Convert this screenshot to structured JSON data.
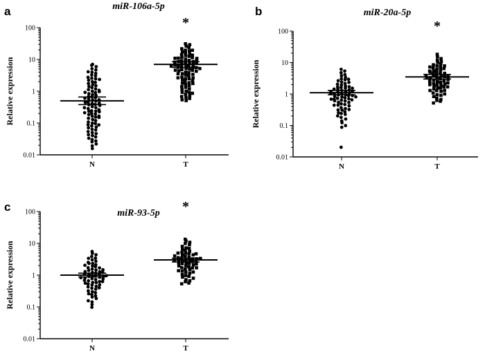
{
  "chart_data": [
    {
      "panel_letter": "a",
      "type": "scatter",
      "title": "miR-106a-5p",
      "ylabel": "Relative expression",
      "yscale": "log",
      "ylim": [
        0.01,
        100
      ],
      "y_ticks": [
        0.01,
        0.1,
        1,
        10,
        100
      ],
      "y_tick_labels": [
        "0.01",
        "0.1",
        "1",
        "10",
        "100"
      ],
      "categories": [
        "N",
        "T"
      ],
      "significance": "*",
      "significance_on": "T",
      "series": [
        {
          "name": "N",
          "marker": "circle",
          "mean": 0.5,
          "sem": [
            0.38,
            0.66
          ],
          "values": [
            7.2,
            6.5,
            5.8,
            5.1,
            4.6,
            4.2,
            3.9,
            3.6,
            3.3,
            3.0,
            2.8,
            2.6,
            2.4,
            2.2,
            2.0,
            1.85,
            1.7,
            1.6,
            1.5,
            1.4,
            1.3,
            1.2,
            1.12,
            1.05,
            0.98,
            0.92,
            0.86,
            0.8,
            0.75,
            0.7,
            0.66,
            0.62,
            0.58,
            0.55,
            0.52,
            0.49,
            0.46,
            0.43,
            0.41,
            0.39,
            0.37,
            0.35,
            0.33,
            0.31,
            0.29,
            0.27,
            0.25,
            0.24,
            0.23,
            0.22,
            0.21,
            0.2,
            0.19,
            0.18,
            0.17,
            0.16,
            0.15,
            0.14,
            0.13,
            0.12,
            0.11,
            0.1,
            0.095,
            0.09,
            0.085,
            0.08,
            0.075,
            0.07,
            0.065,
            0.06,
            0.055,
            0.05,
            0.047,
            0.044,
            0.04,
            0.037,
            0.034,
            0.031,
            0.028,
            0.025,
            0.022,
            0.019,
            0.016,
            0.6,
            0.45,
            0.3,
            1.0,
            0.9,
            2.3,
            0.15
          ]
        },
        {
          "name": "T",
          "marker": "square",
          "mean": 7.0,
          "sem": [
            5.6,
            8.5
          ],
          "values": [
            32,
            29,
            26,
            24,
            22,
            20,
            18.5,
            17,
            16,
            15,
            14,
            13,
            12.5,
            12,
            11.5,
            11,
            10.5,
            10,
            9.6,
            9.2,
            8.8,
            8.4,
            8.0,
            7.7,
            7.4,
            7.1,
            6.8,
            6.5,
            6.2,
            6.0,
            5.8,
            5.6,
            5.4,
            5.2,
            5.0,
            4.8,
            4.6,
            4.4,
            4.2,
            4.0,
            3.8,
            3.6,
            3.4,
            3.2,
            3.0,
            2.85,
            2.7,
            2.55,
            2.4,
            2.25,
            2.1,
            2.0,
            1.9,
            1.8,
            1.7,
            1.6,
            1.5,
            1.4,
            1.3,
            1.2,
            1.1,
            1.0,
            0.95,
            0.9,
            0.85,
            0.8,
            0.75,
            0.7,
            0.65,
            0.6,
            0.55,
            0.5,
            7.5,
            6.6,
            5.3,
            9.0,
            11.0,
            4.5,
            3.5,
            2.6,
            8.2,
            6.3,
            13.5,
            19.0
          ]
        }
      ]
    },
    {
      "panel_letter": "b",
      "type": "scatter",
      "title": "miR-20a-5p",
      "ylabel": "Relative expression",
      "yscale": "log",
      "ylim": [
        0.01,
        100
      ],
      "y_ticks": [
        0.01,
        0.1,
        1,
        10,
        100
      ],
      "y_tick_labels": [
        "0.01",
        "0.1",
        "1",
        "10",
        "100"
      ],
      "categories": [
        "N",
        "T"
      ],
      "significance": "*",
      "significance_on": "T",
      "series": [
        {
          "name": "N",
          "marker": "circle",
          "mean": 1.1,
          "sem": [
            0.95,
            1.3
          ],
          "values": [
            6.0,
            5.3,
            4.7,
            4.2,
            3.8,
            3.4,
            3.1,
            2.8,
            2.6,
            2.4,
            2.2,
            2.05,
            1.9,
            1.8,
            1.7,
            1.6,
            1.5,
            1.42,
            1.35,
            1.28,
            1.22,
            1.16,
            1.1,
            1.05,
            1.0,
            0.96,
            0.92,
            0.88,
            0.84,
            0.8,
            0.77,
            0.74,
            0.71,
            0.68,
            0.65,
            0.62,
            0.59,
            0.56,
            0.53,
            0.5,
            0.47,
            0.44,
            0.41,
            0.38,
            0.35,
            0.32,
            0.3,
            0.28,
            0.26,
            0.24,
            0.22,
            0.2,
            0.18,
            0.16,
            0.14,
            0.12,
            0.1,
            0.09,
            0.02,
            1.2,
            0.9,
            0.7,
            1.4,
            2.3,
            0.6,
            1.0,
            0.45,
            1.75,
            2.9,
            0.33,
            1.15,
            0.82,
            1.55
          ]
        },
        {
          "name": "T",
          "marker": "square",
          "mean": 3.5,
          "sem": [
            3.0,
            4.2
          ],
          "values": [
            18,
            15.5,
            13.5,
            12,
            10.8,
            9.8,
            9.0,
            8.3,
            7.7,
            7.1,
            6.6,
            6.1,
            5.7,
            5.3,
            5.0,
            4.7,
            4.4,
            4.1,
            3.9,
            3.7,
            3.5,
            3.3,
            3.1,
            2.95,
            2.8,
            2.65,
            2.5,
            2.35,
            2.2,
            2.1,
            2.0,
            1.9,
            1.8,
            1.7,
            1.6,
            1.5,
            1.42,
            1.34,
            1.26,
            1.18,
            1.1,
            1.02,
            0.95,
            0.88,
            0.81,
            0.75,
            0.69,
            0.63,
            0.58,
            0.53,
            3.6,
            4.5,
            2.7,
            6.3,
            1.95,
            3.0,
            5.5,
            2.4,
            8.0,
            1.65,
            3.2,
            4.8,
            2.2,
            1.3,
            7.4,
            3.8
          ]
        }
      ]
    },
    {
      "panel_letter": "c",
      "type": "scatter",
      "title": "miR-93-5p",
      "ylabel": "Relative expression",
      "yscale": "log",
      "ylim": [
        0.01,
        100
      ],
      "y_ticks": [
        0.01,
        0.1,
        1,
        10,
        100
      ],
      "y_tick_labels": [
        "0.01",
        "0.1",
        "1",
        "10",
        "100"
      ],
      "categories": [
        "N",
        "T"
      ],
      "significance": "*",
      "significance_on": "T",
      "series": [
        {
          "name": "N",
          "marker": "circle",
          "mean": 1.0,
          "sem": [
            0.88,
            1.15
          ],
          "values": [
            5.5,
            4.9,
            4.4,
            3.9,
            3.5,
            3.1,
            2.8,
            2.55,
            2.3,
            2.1,
            1.95,
            1.8,
            1.68,
            1.56,
            1.46,
            1.37,
            1.28,
            1.2,
            1.13,
            1.06,
            1.0,
            0.95,
            0.9,
            0.85,
            0.8,
            0.76,
            0.72,
            0.68,
            0.64,
            0.6,
            0.57,
            0.54,
            0.51,
            0.48,
            0.45,
            0.42,
            0.39,
            0.36,
            0.33,
            0.3,
            0.28,
            0.26,
            0.24,
            0.22,
            0.2,
            0.18,
            0.16,
            0.14,
            0.12,
            0.1,
            1.1,
            0.92,
            1.3,
            0.7,
            1.7,
            0.55,
            2.0,
            0.85,
            1.05,
            0.62,
            1.5,
            2.4,
            0.4,
            1.2,
            0.97,
            3.3,
            0.78
          ]
        },
        {
          "name": "T",
          "marker": "square",
          "mean": 3.0,
          "sem": [
            2.6,
            3.4
          ],
          "values": [
            13.5,
            12,
            10.8,
            9.7,
            8.8,
            8.0,
            7.3,
            6.7,
            6.2,
            5.7,
            5.3,
            4.9,
            4.6,
            4.3,
            4.0,
            3.75,
            3.5,
            3.3,
            3.1,
            2.95,
            2.8,
            2.65,
            2.5,
            2.36,
            2.22,
            2.1,
            1.98,
            1.86,
            1.75,
            1.65,
            1.55,
            1.46,
            1.37,
            1.29,
            1.21,
            1.13,
            1.06,
            0.99,
            0.92,
            0.86,
            0.8,
            0.74,
            0.68,
            0.63,
            0.58,
            0.54,
            3.0,
            3.6,
            2.4,
            4.4,
            2.0,
            5.0,
            3.2,
            2.7,
            1.7,
            6.5,
            3.9,
            2.3,
            1.4,
            3.4,
            2.9,
            4.7
          ]
        }
      ]
    }
  ]
}
